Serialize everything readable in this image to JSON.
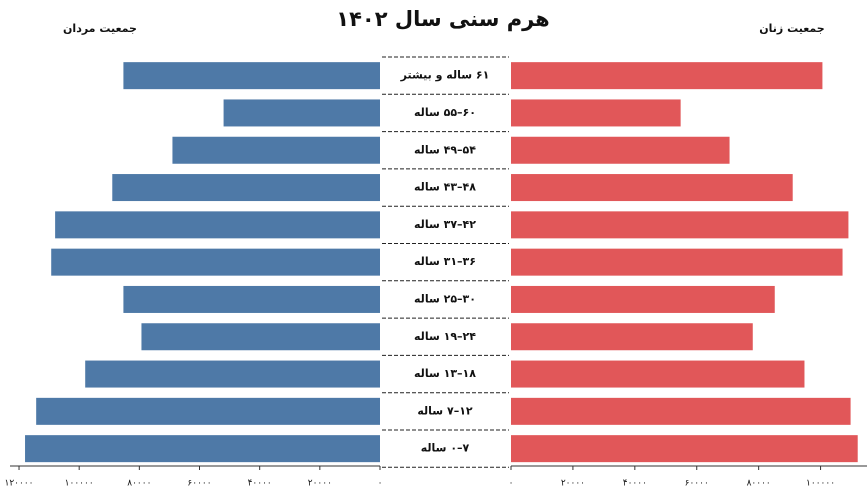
{
  "chart_data": {
    "type": "pyramid",
    "title": "هرم سنی سال ۱۴۰۲",
    "categories": [
      "۶۱ ساله و بیشتر",
      "۶۰–۵۵ ساله",
      "۵۴–۴۹ ساله",
      "۴۸–۴۳ ساله",
      "۴۲–۳۷ ساله",
      "۳۶–۳۱ ساله",
      "۳۰–۲۵ ساله",
      "۲۴–۱۹ ساله",
      "۱۸–۱۳ ساله",
      "۱۲–۷ ساله",
      "۷–۰ ساله"
    ],
    "series": [
      {
        "name": "جمعیت مردان",
        "color": "#4e79a7",
        "side": "left",
        "values": [
          85300,
          52000,
          69000,
          89000,
          108000,
          109300,
          85300,
          79300,
          98000,
          114300,
          118000
        ],
        "xlim": [
          0,
          123000
        ],
        "xticks": [
          {
            "value": 0,
            "label": "۰"
          },
          {
            "value": 20000,
            "label": "۲۰۰۰۰"
          },
          {
            "value": 40000,
            "label": "۴۰۰۰۰"
          },
          {
            "value": 60000,
            "label": "۶۰۰۰۰"
          },
          {
            "value": 80000,
            "label": "۸۰۰۰۰"
          },
          {
            "value": 100000,
            "label": "۱۰۰۰۰۰"
          },
          {
            "value": 120000,
            "label": "۱۲۰۰۰۰"
          }
        ]
      },
      {
        "name": "جمعیت زنان",
        "color": "#e15759",
        "side": "right",
        "values": [
          100600,
          54800,
          70600,
          91000,
          109000,
          107100,
          85200,
          78100,
          94800,
          109700,
          112000
        ],
        "xlim": [
          0,
          115000
        ],
        "xticks": [
          {
            "value": 0,
            "label": "۰"
          },
          {
            "value": 20000,
            "label": "۲۰۰۰۰"
          },
          {
            "value": 40000,
            "label": "۴۰۰۰۰"
          },
          {
            "value": 60000,
            "label": "۶۰۰۰۰"
          },
          {
            "value": 80000,
            "label": "۸۰۰۰۰"
          },
          {
            "value": 100000,
            "label": "۱۰۰۰۰۰"
          }
        ]
      }
    ]
  }
}
